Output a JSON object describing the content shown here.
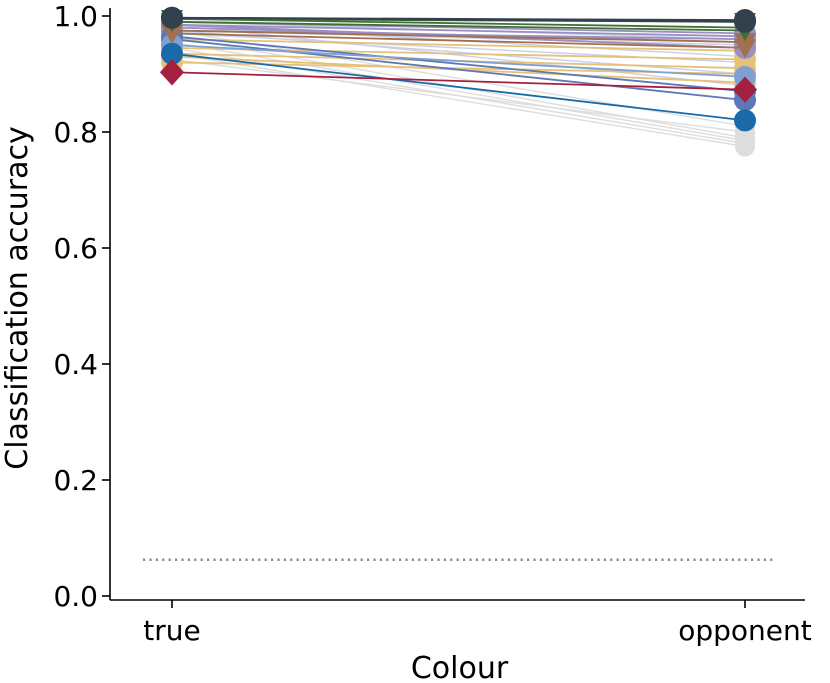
{
  "chart_data": {
    "type": "line",
    "xlabel": "Colour",
    "ylabel": "Classification accuracy",
    "categories": [
      "true",
      "opponent"
    ],
    "ylim": [
      0.0,
      1.0
    ],
    "yticks": [
      0.0,
      0.2,
      0.4,
      0.6,
      0.8,
      1.0
    ],
    "ytick_labels": [
      "0.0",
      "0.2",
      "0.4",
      "0.6",
      "0.8",
      "1.0"
    ],
    "grid": false,
    "chance_level": 0.0625,
    "chance_color": "#8c8c8c",
    "series": [
      {
        "values": [
          0.965,
          0.79
        ],
        "color": "#dddddd",
        "marker": "circle"
      },
      {
        "values": [
          0.955,
          0.785
        ],
        "color": "#dddddd",
        "marker": "circle"
      },
      {
        "values": [
          0.945,
          0.78
        ],
        "color": "#dddddd",
        "marker": "circle"
      },
      {
        "values": [
          0.935,
          0.775
        ],
        "color": "#dddddd",
        "marker": "circle"
      },
      {
        "values": [
          0.975,
          0.81
        ],
        "color": "#dddddd",
        "marker": "circle"
      },
      {
        "values": [
          0.925,
          0.8
        ],
        "color": "#dddddd",
        "marker": "circle"
      },
      {
        "values": [
          0.985,
          0.88
        ],
        "color": "#c8d0e8",
        "marker": "circle"
      },
      {
        "values": [
          0.975,
          0.9
        ],
        "color": "#c8d0e8",
        "marker": "circle"
      },
      {
        "values": [
          0.985,
          0.93
        ],
        "color": "#c8d0e8",
        "marker": "circle"
      },
      {
        "values": [
          0.975,
          0.95
        ],
        "color": "#c8d0e8",
        "marker": "circle"
      },
      {
        "values": [
          0.97,
          0.92
        ],
        "color": "#c8d0e8",
        "marker": "circle"
      },
      {
        "values": [
          0.99,
          0.96
        ],
        "color": "#c8d0e8",
        "marker": "circle"
      },
      {
        "values": [
          0.935,
          0.91
        ],
        "color": "#e6c17a",
        "marker": "circle"
      },
      {
        "values": [
          0.92,
          0.9
        ],
        "color": "#e6c17a",
        "marker": "circle"
      },
      {
        "values": [
          0.945,
          0.925
        ],
        "color": "#e6c17a",
        "marker": "circle"
      },
      {
        "values": [
          0.96,
          0.94
        ],
        "color": "#e6c17a",
        "marker": "circle"
      },
      {
        "values": [
          0.93,
          0.885
        ],
        "color": "#e6c17a",
        "marker": "circle"
      },
      {
        "values": [
          0.985,
          0.965
        ],
        "color": "#9a8fc0",
        "marker": "circle"
      },
      {
        "values": [
          0.98,
          0.955
        ],
        "color": "#9a8fc0",
        "marker": "circle"
      },
      {
        "values": [
          0.975,
          0.96
        ],
        "color": "#9a8fc0",
        "marker": "circle"
      },
      {
        "values": [
          0.99,
          0.97
        ],
        "color": "#9a8fc0",
        "marker": "circle"
      },
      {
        "values": [
          0.985,
          0.945
        ],
        "color": "#9a8fc0",
        "marker": "circle"
      },
      {
        "values": [
          0.96,
          0.855
        ],
        "color": "#5b78b8",
        "marker": "circle"
      },
      {
        "values": [
          0.965,
          0.87
        ],
        "color": "#5b78b8",
        "marker": "circle"
      },
      {
        "values": [
          0.95,
          0.895
        ],
        "color": "#7fa0d0",
        "marker": "circle"
      },
      {
        "values": [
          0.935,
          0.82
        ],
        "color": "#1a6aaa",
        "marker": "circle"
      },
      {
        "values": [
          0.97,
          0.945
        ],
        "color": "#a07050",
        "marker": "triangle"
      },
      {
        "values": [
          0.975,
          0.955
        ],
        "color": "#a07050",
        "marker": "triangle"
      },
      {
        "values": [
          0.995,
          0.98
        ],
        "color": "#3f6f35",
        "marker": "triangle"
      },
      {
        "values": [
          0.99,
          0.975
        ],
        "color": "#3f6f35",
        "marker": "triangle"
      },
      {
        "values": [
          0.995,
          0.99
        ],
        "color": "#3f6f35",
        "marker": "triangle"
      },
      {
        "values": [
          0.997,
          0.993
        ],
        "color": "#33404e",
        "marker": "circle"
      },
      {
        "values": [
          0.997,
          0.99
        ],
        "color": "#33404e",
        "marker": "circle"
      },
      {
        "values": [
          0.903,
          0.873
        ],
        "color": "#a5203f",
        "marker": "diamond"
      }
    ]
  }
}
